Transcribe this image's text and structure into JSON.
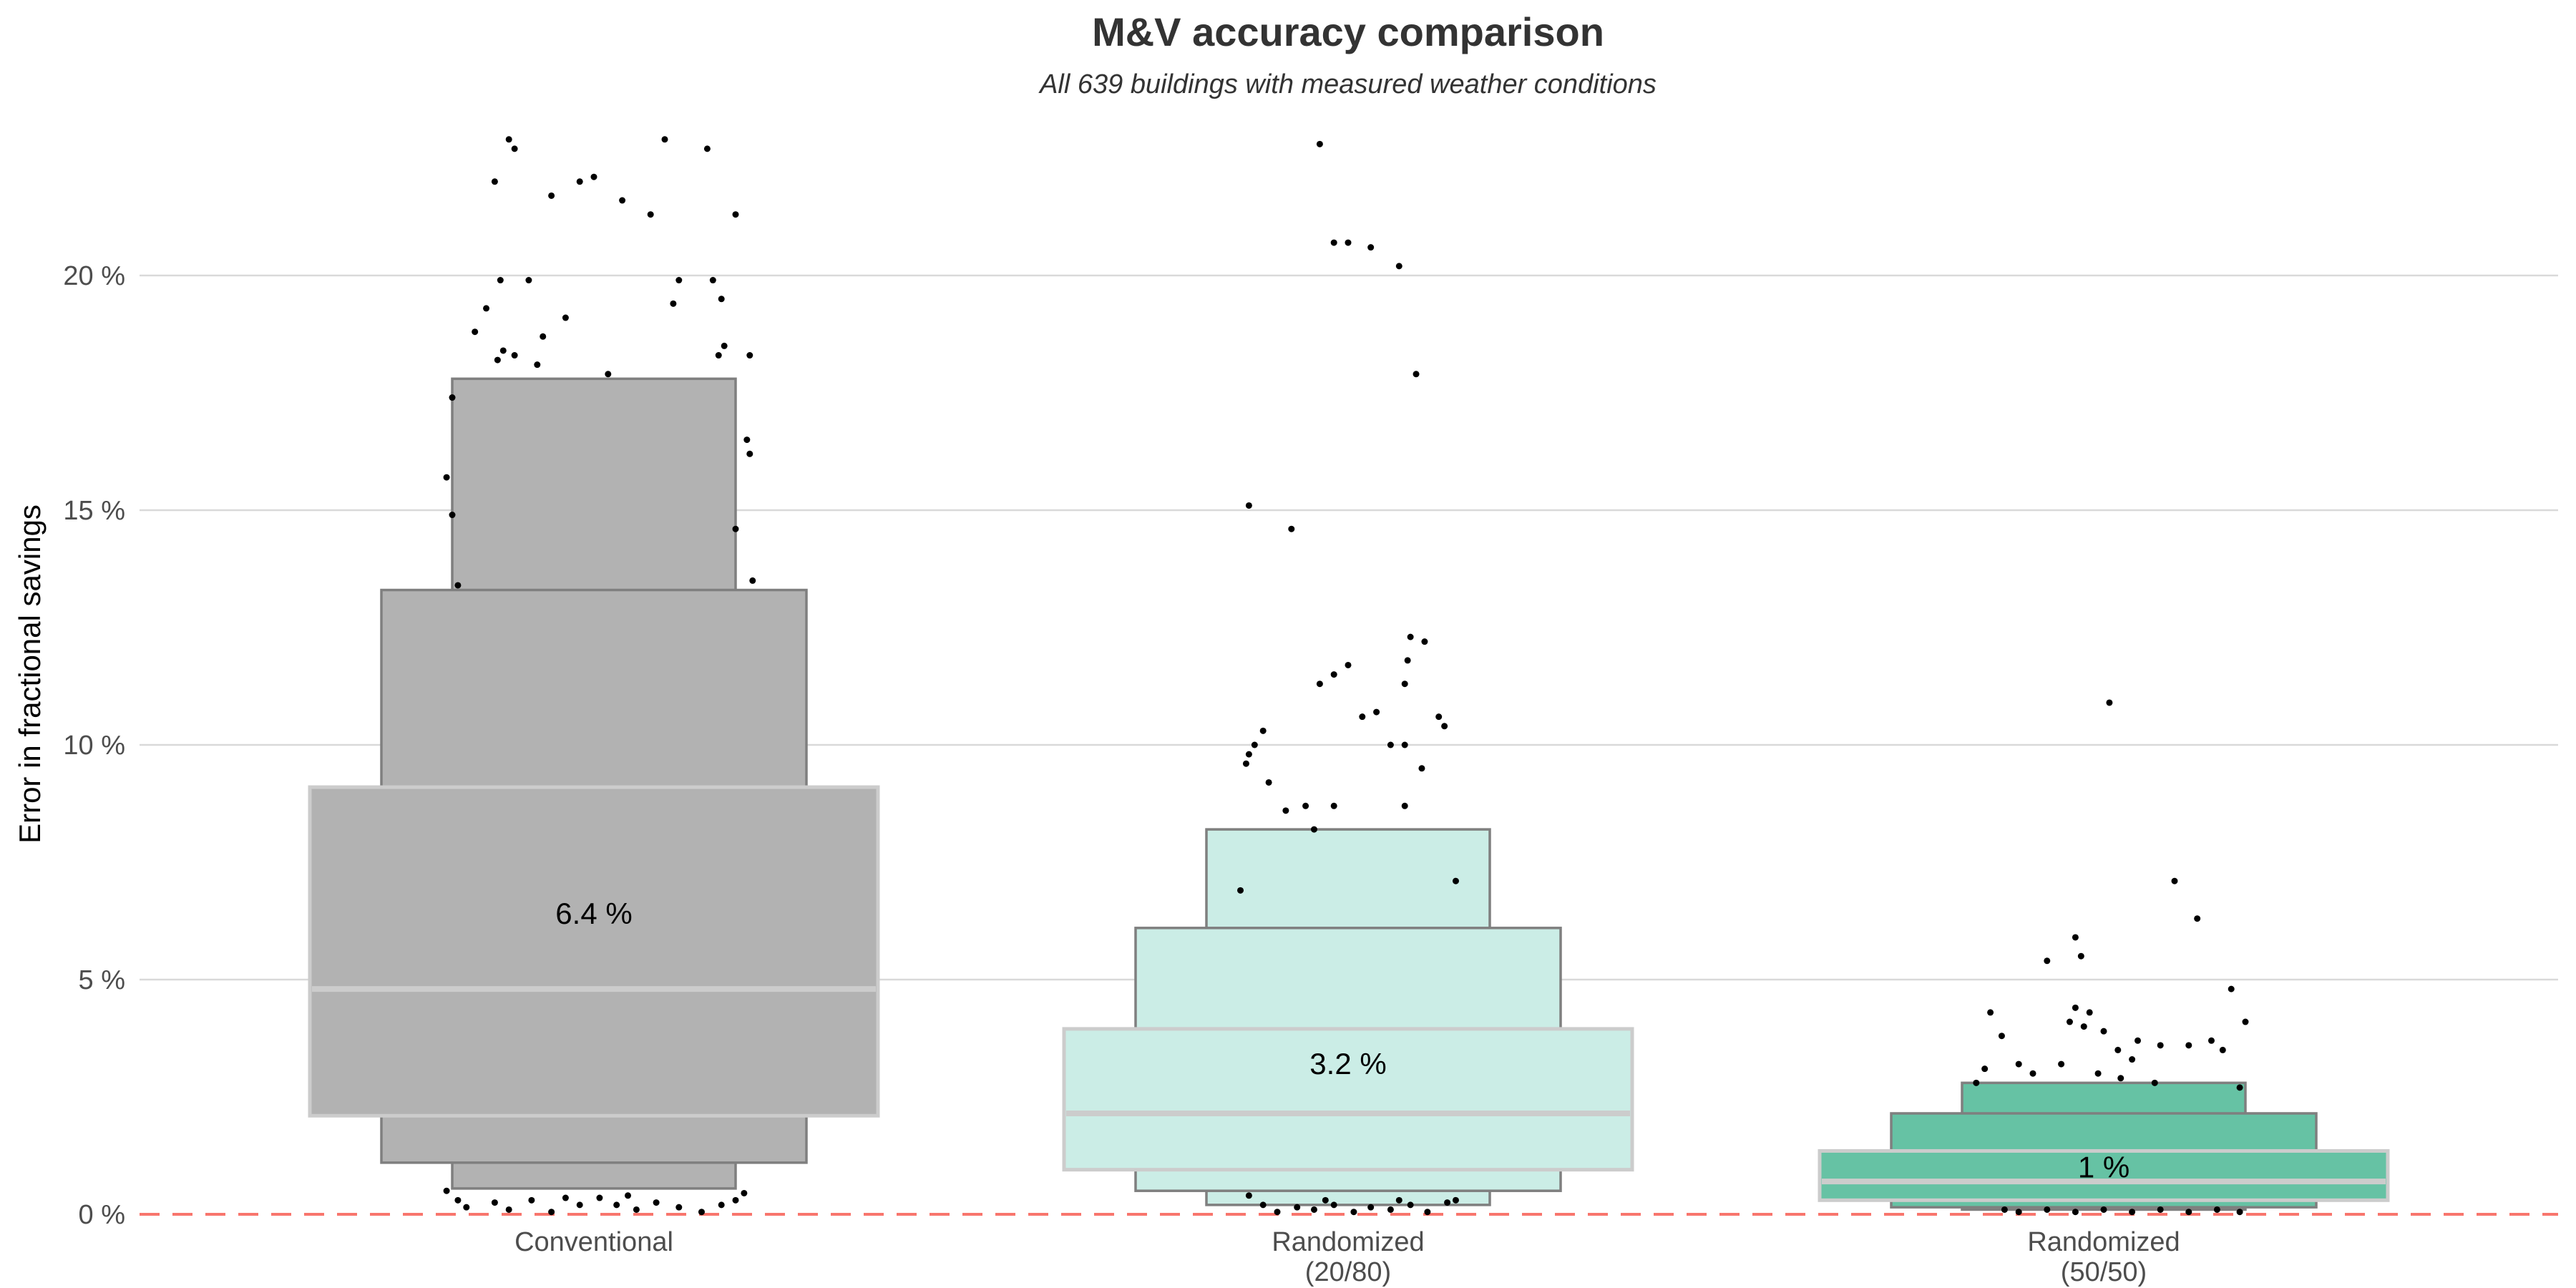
{
  "chart_data": {
    "type": "letter-value boxplot",
    "title": "M&V accuracy comparison",
    "subtitle": "All 639 buildings with measured weather conditions",
    "ylabel": "Error in fractional savings",
    "xlabel": "",
    "ylim": [
      0,
      25
    ],
    "yticks": [
      {
        "value": 0,
        "label": "0 %"
      },
      {
        "value": 5,
        "label": "5 %"
      },
      {
        "value": 10,
        "label": "10 %"
      },
      {
        "value": 15,
        "label": "15 %"
      },
      {
        "value": 20,
        "label": "20 %"
      }
    ],
    "grid": true,
    "reference_line": {
      "y": 0,
      "style": "dashed",
      "color": "#F8766D"
    },
    "colors": {
      "grid": "#d9d9d9",
      "box_border": "#7f7f7f",
      "median_box_border": "#cccccc",
      "median_line": "#cccccc",
      "points": "#000000"
    },
    "categories": [
      {
        "label": [
          "Conventional"
        ],
        "fill": "#b2b2b2",
        "median": 4.8,
        "mean_label": "6.4 %",
        "mean": 6.4,
        "boxes": [
          {
            "lower": 2.1,
            "upper": 9.1
          },
          {
            "lower": 1.1,
            "upper": 13.3
          },
          {
            "lower": 0.55,
            "upper": 17.8
          }
        ],
        "outliers": [
          [
            -0.3,
            22.9
          ],
          [
            -0.28,
            22.7
          ],
          [
            -0.35,
            22.0
          ],
          [
            -0.15,
            21.7
          ],
          [
            -0.05,
            22.0
          ],
          [
            0.0,
            22.1
          ],
          [
            0.1,
            21.6
          ],
          [
            0.2,
            21.3
          ],
          [
            0.25,
            22.9
          ],
          [
            0.4,
            22.7
          ],
          [
            0.5,
            21.3
          ],
          [
            -0.38,
            19.3
          ],
          [
            -0.33,
            19.9
          ],
          [
            -0.23,
            19.9
          ],
          [
            -0.32,
            18.4
          ],
          [
            -0.18,
            18.7
          ],
          [
            -0.1,
            19.1
          ],
          [
            -0.42,
            18.8
          ],
          [
            -0.34,
            18.2
          ],
          [
            -0.28,
            18.3
          ],
          [
            -0.2,
            18.1
          ],
          [
            0.3,
            19.9
          ],
          [
            0.28,
            19.4
          ],
          [
            0.42,
            19.9
          ],
          [
            0.45,
            19.5
          ],
          [
            0.46,
            18.5
          ],
          [
            0.44,
            18.3
          ],
          [
            0.55,
            18.3
          ],
          [
            0.55,
            16.2
          ],
          [
            0.54,
            16.5
          ],
          [
            0.5,
            14.6
          ],
          [
            0.56,
            13.5
          ],
          [
            -0.5,
            17.4
          ],
          [
            -0.52,
            15.7
          ],
          [
            -0.5,
            14.9
          ],
          [
            -0.48,
            13.4
          ],
          [
            0.05,
            17.9
          ],
          [
            -0.52,
            0.5
          ],
          [
            -0.48,
            0.3
          ],
          [
            -0.45,
            0.15
          ],
          [
            -0.35,
            0.25
          ],
          [
            -0.3,
            0.1
          ],
          [
            -0.22,
            0.3
          ],
          [
            -0.15,
            0.05
          ],
          [
            -0.05,
            0.2
          ],
          [
            0.02,
            0.35
          ],
          [
            0.08,
            0.2
          ],
          [
            0.15,
            0.1
          ],
          [
            0.22,
            0.25
          ],
          [
            0.3,
            0.15
          ],
          [
            0.38,
            0.05
          ],
          [
            0.45,
            0.2
          ],
          [
            0.5,
            0.3
          ],
          [
            0.53,
            0.45
          ],
          [
            -0.1,
            0.35
          ],
          [
            0.12,
            0.4
          ]
        ]
      },
      {
        "label": [
          "Randomized",
          "(20/80)"
        ],
        "fill": "#cbede6",
        "median": 2.15,
        "mean_label": "3.2 %",
        "mean": 3.2,
        "boxes": [
          {
            "lower": 0.95,
            "upper": 3.95
          },
          {
            "lower": 0.5,
            "upper": 6.1
          },
          {
            "lower": 0.2,
            "upper": 8.2
          }
        ],
        "outliers": [
          [
            -0.1,
            22.8
          ],
          [
            -0.05,
            20.7
          ],
          [
            0.0,
            20.7
          ],
          [
            0.08,
            20.6
          ],
          [
            0.18,
            20.2
          ],
          [
            0.24,
            17.9
          ],
          [
            -0.35,
            15.1
          ],
          [
            -0.2,
            14.6
          ],
          [
            -0.1,
            11.3
          ],
          [
            -0.05,
            11.5
          ],
          [
            0.0,
            11.7
          ],
          [
            0.1,
            10.7
          ],
          [
            0.05,
            10.6
          ],
          [
            0.15,
            10.0
          ],
          [
            0.22,
            12.3
          ],
          [
            0.27,
            12.2
          ],
          [
            0.21,
            11.8
          ],
          [
            0.2,
            11.3
          ],
          [
            0.32,
            10.6
          ],
          [
            0.34,
            10.4
          ],
          [
            0.2,
            10.0
          ],
          [
            0.26,
            9.5
          ],
          [
            -0.3,
            10.3
          ],
          [
            -0.33,
            10.0
          ],
          [
            -0.35,
            9.8
          ],
          [
            -0.36,
            9.6
          ],
          [
            -0.28,
            9.2
          ],
          [
            -0.22,
            8.6
          ],
          [
            -0.15,
            8.7
          ],
          [
            -0.05,
            8.7
          ],
          [
            -0.12,
            8.2
          ],
          [
            0.2,
            8.7
          ],
          [
            0.38,
            7.1
          ],
          [
            -0.38,
            6.9
          ],
          [
            -0.35,
            0.4
          ],
          [
            -0.3,
            0.2
          ],
          [
            -0.25,
            0.05
          ],
          [
            -0.18,
            0.15
          ],
          [
            -0.12,
            0.1
          ],
          [
            -0.05,
            0.2
          ],
          [
            0.02,
            0.05
          ],
          [
            0.08,
            0.15
          ],
          [
            0.15,
            0.1
          ],
          [
            0.22,
            0.2
          ],
          [
            0.28,
            0.05
          ],
          [
            0.35,
            0.25
          ],
          [
            0.38,
            0.3
          ],
          [
            -0.08,
            0.3
          ],
          [
            0.18,
            0.3
          ]
        ]
      },
      {
        "label": [
          "Randomized",
          "(50/50)"
        ],
        "fill": "#66c2a4",
        "median": 0.7,
        "mean_label": "1 %",
        "mean": 1.0,
        "boxes": [
          {
            "lower": 0.3,
            "upper": 1.35
          },
          {
            "lower": 0.15,
            "upper": 2.15
          },
          {
            "lower": 0.1,
            "upper": 2.8
          }
        ],
        "outliers": [
          [
            0.02,
            10.9
          ],
          [
            0.25,
            7.1
          ],
          [
            0.33,
            6.3
          ],
          [
            -0.1,
            5.9
          ],
          [
            -0.08,
            5.5
          ],
          [
            -0.2,
            5.4
          ],
          [
            0.45,
            4.8
          ],
          [
            0.5,
            4.1
          ],
          [
            -0.4,
            4.3
          ],
          [
            -0.36,
            3.8
          ],
          [
            -0.3,
            3.2
          ],
          [
            -0.25,
            3.0
          ],
          [
            -0.1,
            4.4
          ],
          [
            -0.12,
            4.1
          ],
          [
            -0.05,
            4.3
          ],
          [
            -0.07,
            4.0
          ],
          [
            0.0,
            3.9
          ],
          [
            0.05,
            3.5
          ],
          [
            0.12,
            3.7
          ],
          [
            0.2,
            3.6
          ],
          [
            0.3,
            3.6
          ],
          [
            0.38,
            3.7
          ],
          [
            0.42,
            3.5
          ],
          [
            -0.15,
            3.2
          ],
          [
            0.1,
            3.3
          ],
          [
            -0.45,
            2.8
          ],
          [
            -0.42,
            3.1
          ],
          [
            0.06,
            2.9
          ],
          [
            0.18,
            2.8
          ],
          [
            -0.02,
            3.0
          ],
          [
            0.48,
            2.7
          ],
          [
            -0.35,
            0.1
          ],
          [
            -0.3,
            0.05
          ],
          [
            -0.2,
            0.1
          ],
          [
            -0.1,
            0.05
          ],
          [
            0.0,
            0.1
          ],
          [
            0.1,
            0.05
          ],
          [
            0.2,
            0.1
          ],
          [
            0.3,
            0.05
          ],
          [
            0.4,
            0.1
          ],
          [
            0.48,
            0.05
          ]
        ]
      }
    ]
  }
}
